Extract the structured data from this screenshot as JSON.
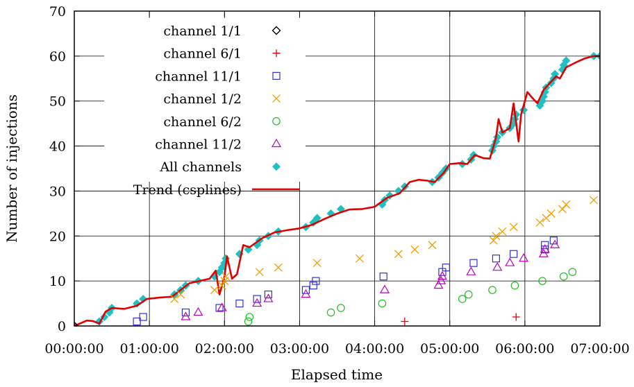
{
  "chart_data": {
    "type": "scatter",
    "title": "",
    "xlabel": "Elapsed time",
    "ylabel": "Number of injections",
    "xlim": [
      "00:00:00",
      "07:00:00"
    ],
    "ylim": [
      0,
      70
    ],
    "x_ticks": [
      "00:00:00",
      "01:00:00",
      "02:00:00",
      "03:00:00",
      "04:00:00",
      "05:00:00",
      "06:00:00",
      "07:00:00"
    ],
    "y_ticks": [
      "0",
      "10",
      "20",
      "30",
      "40",
      "50",
      "60",
      "70"
    ],
    "grid": true,
    "legend_position": "top-left",
    "series": [
      {
        "name": "channel 1/1",
        "marker": "diamond-open",
        "color": "#000000",
        "points": [
          [
            "00:00:00",
            0
          ]
        ]
      },
      {
        "name": "channel 6/1",
        "marker": "plus",
        "color": "#e00000",
        "points": [
          [
            "04:24:00",
            1
          ],
          [
            "05:53:00",
            2
          ]
        ]
      },
      {
        "name": "channel 11/1",
        "marker": "square-open",
        "color": "#3030e0",
        "points": [
          [
            "00:50:00",
            1
          ],
          [
            "00:55:00",
            2
          ],
          [
            "01:29:00",
            3
          ],
          [
            "01:56:00",
            4
          ],
          [
            "02:12:00",
            5
          ],
          [
            "02:26:00",
            6
          ],
          [
            "02:35:00",
            7
          ],
          [
            "03:05:00",
            8
          ],
          [
            "03:11:00",
            9
          ],
          [
            "03:13:00",
            10
          ],
          [
            "04:07:00",
            11
          ],
          [
            "04:54:00",
            12
          ],
          [
            "04:57:00",
            13
          ],
          [
            "05:19:00",
            14
          ],
          [
            "05:37:00",
            15
          ],
          [
            "05:51:00",
            16
          ],
          [
            "06:16:00",
            17
          ],
          [
            "06:16:00",
            18
          ],
          [
            "06:23:00",
            19
          ]
        ]
      },
      {
        "name": "channel 1/2",
        "marker": "cross",
        "color": "#f0a000",
        "points": [
          [
            "01:20:00",
            6
          ],
          [
            "01:25:00",
            7
          ],
          [
            "01:52:00",
            8
          ],
          [
            "01:58:00",
            9
          ],
          [
            "02:00:00",
            10
          ],
          [
            "02:01:00",
            11
          ],
          [
            "02:28:00",
            12
          ],
          [
            "02:43:00",
            13
          ],
          [
            "03:14:00",
            14
          ],
          [
            "03:48:00",
            15
          ],
          [
            "04:19:00",
            16
          ],
          [
            "04:32:00",
            17
          ],
          [
            "04:46:00",
            18
          ],
          [
            "05:35:00",
            19
          ],
          [
            "05:37:00",
            20
          ],
          [
            "05:42:00",
            21
          ],
          [
            "05:51:00",
            22
          ],
          [
            "06:12:00",
            23
          ],
          [
            "06:17:00",
            24
          ],
          [
            "06:21:00",
            25
          ],
          [
            "06:30:00",
            26
          ],
          [
            "06:33:00",
            27
          ],
          [
            "06:55:00",
            28
          ]
        ]
      },
      {
        "name": "channel 6/2",
        "marker": "circle-open",
        "color": "#20c020",
        "points": [
          [
            "02:19:00",
            1
          ],
          [
            "02:20:00",
            2
          ],
          [
            "03:25:00",
            3
          ],
          [
            "03:33:00",
            4
          ],
          [
            "04:06:00",
            5
          ],
          [
            "05:10:00",
            6
          ],
          [
            "05:15:00",
            7
          ],
          [
            "05:34:00",
            8
          ],
          [
            "05:52:00",
            9
          ],
          [
            "06:14:00",
            10
          ],
          [
            "06:31:00",
            11
          ],
          [
            "06:38:00",
            12
          ]
        ]
      },
      {
        "name": "channel 11/2",
        "marker": "triangle-open",
        "color": "#c000c0",
        "points": [
          [
            "01:29:00",
            2
          ],
          [
            "01:39:00",
            3
          ],
          [
            "01:58:00",
            4
          ],
          [
            "02:26:00",
            5
          ],
          [
            "02:35:00",
            6
          ],
          [
            "03:05:00",
            7
          ],
          [
            "04:08:00",
            8
          ],
          [
            "04:51:00",
            9
          ],
          [
            "04:53:00",
            10
          ],
          [
            "04:54:00",
            11
          ],
          [
            "05:17:00",
            12
          ],
          [
            "05:38:00",
            13
          ],
          [
            "05:48:00",
            14
          ],
          [
            "05:59:00",
            15
          ],
          [
            "06:15:00",
            16
          ],
          [
            "06:16:00",
            17
          ],
          [
            "06:24:00",
            18
          ]
        ]
      },
      {
        "name": "All channels",
        "marker": "diamond-filled",
        "color": "#20c0c0",
        "points": [
          [
            "00:00:00",
            0
          ],
          [
            "00:20:00",
            1
          ],
          [
            "00:24:00",
            2
          ],
          [
            "00:28:00",
            3
          ],
          [
            "00:30:00",
            4
          ],
          [
            "00:50:00",
            5
          ],
          [
            "00:55:00",
            6
          ],
          [
            "01:20:00",
            7
          ],
          [
            "01:25:00",
            8
          ],
          [
            "01:29:00",
            9
          ],
          [
            "01:39:00",
            10
          ],
          [
            "01:52:00",
            11
          ],
          [
            "01:56:00",
            12
          ],
          [
            "01:58:00",
            13
          ],
          [
            "02:00:00",
            14
          ],
          [
            "02:01:00",
            15
          ],
          [
            "02:12:00",
            16
          ],
          [
            "02:19:00",
            17
          ],
          [
            "02:26:00",
            18
          ],
          [
            "02:28:00",
            19
          ],
          [
            "02:35:00",
            20
          ],
          [
            "02:43:00",
            21
          ],
          [
            "03:05:00",
            22
          ],
          [
            "03:11:00",
            23
          ],
          [
            "03:14:00",
            24
          ],
          [
            "03:25:00",
            25
          ],
          [
            "03:33:00",
            26
          ],
          [
            "04:06:00",
            27
          ],
          [
            "04:08:00",
            28
          ],
          [
            "04:12:00",
            29
          ],
          [
            "04:19:00",
            30
          ],
          [
            "04:24:00",
            31
          ],
          [
            "04:46:00",
            32
          ],
          [
            "04:51:00",
            33
          ],
          [
            "04:54:00",
            34
          ],
          [
            "04:57:00",
            35
          ],
          [
            "05:10:00",
            36
          ],
          [
            "05:17:00",
            37
          ],
          [
            "05:19:00",
            38
          ],
          [
            "05:34:00",
            39
          ],
          [
            "05:35:00",
            40
          ],
          [
            "05:37:00",
            41
          ],
          [
            "05:38:00",
            42
          ],
          [
            "05:42:00",
            43
          ],
          [
            "05:48:00",
            44
          ],
          [
            "05:51:00",
            45
          ],
          [
            "05:52:00",
            46
          ],
          [
            "05:53:00",
            47
          ],
          [
            "05:59:00",
            48
          ],
          [
            "06:12:00",
            49
          ],
          [
            "06:14:00",
            50
          ],
          [
            "06:15:00",
            51
          ],
          [
            "06:16:00",
            52
          ],
          [
            "06:17:00",
            53
          ],
          [
            "06:21:00",
            54
          ],
          [
            "06:23:00",
            55
          ],
          [
            "06:24:00",
            56
          ],
          [
            "06:30:00",
            57
          ],
          [
            "06:31:00",
            58
          ],
          [
            "06:33:00",
            59
          ],
          [
            "06:55:00",
            60
          ],
          [
            "07:00:00",
            60
          ]
        ]
      },
      {
        "name": "Trend (csplines)",
        "style": "line",
        "color": "#e00000",
        "points": [
          [
            "00:00:00",
            0
          ],
          [
            "00:10:00",
            1.2
          ],
          [
            "00:15:00",
            1.1
          ],
          [
            "00:20:00",
            0.5
          ],
          [
            "00:25:00",
            3.2
          ],
          [
            "00:30:00",
            4
          ],
          [
            "00:40:00",
            3.8
          ],
          [
            "00:50:00",
            4.5
          ],
          [
            "00:58:00",
            6
          ],
          [
            "01:08:00",
            6.3
          ],
          [
            "01:18:00",
            6.5
          ],
          [
            "01:25:00",
            8
          ],
          [
            "01:32:00",
            9.5
          ],
          [
            "01:40:00",
            10
          ],
          [
            "01:48:00",
            10.5
          ],
          [
            "01:53:00",
            12.3
          ],
          [
            "01:56:00",
            7
          ],
          [
            "02:00:00",
            11
          ],
          [
            "02:02:00",
            15.5
          ],
          [
            "02:06:00",
            10.5
          ],
          [
            "02:10:00",
            11.5
          ],
          [
            "02:15:00",
            18
          ],
          [
            "02:20:00",
            17.5
          ],
          [
            "02:30:00",
            19.5
          ],
          [
            "02:40:00",
            20.8
          ],
          [
            "02:50:00",
            21.3
          ],
          [
            "03:00:00",
            21.7
          ],
          [
            "03:10:00",
            22.5
          ],
          [
            "03:20:00",
            23.8
          ],
          [
            "03:30:00",
            25
          ],
          [
            "03:40:00",
            25.9
          ],
          [
            "03:50:00",
            26
          ],
          [
            "04:00:00",
            26.5
          ],
          [
            "04:10:00",
            28.5
          ],
          [
            "04:20:00",
            29.5
          ],
          [
            "04:28:00",
            32
          ],
          [
            "04:35:00",
            32.5
          ],
          [
            "04:42:00",
            32.3
          ],
          [
            "04:48:00",
            32
          ],
          [
            "04:55:00",
            34
          ],
          [
            "05:00:00",
            36
          ],
          [
            "05:08:00",
            36.2
          ],
          [
            "05:14:00",
            36
          ],
          [
            "05:20:00",
            38
          ],
          [
            "05:27:00",
            37.3
          ],
          [
            "05:32:00",
            37.2
          ],
          [
            "05:35:00",
            40
          ],
          [
            "05:37:00",
            42
          ],
          [
            "05:39:00",
            46
          ],
          [
            "05:42:00",
            43
          ],
          [
            "05:48:00",
            44
          ],
          [
            "05:51:00",
            49.5
          ],
          [
            "05:55:00",
            41
          ],
          [
            "05:57:00",
            47
          ],
          [
            "06:02:00",
            52
          ],
          [
            "06:05:00",
            51
          ],
          [
            "06:10:00",
            49.5
          ],
          [
            "06:15:00",
            52.5
          ],
          [
            "06:20:00",
            54
          ],
          [
            "06:25:00",
            55.5
          ],
          [
            "06:28:00",
            55
          ],
          [
            "06:33:00",
            57.5
          ],
          [
            "06:40:00",
            58.5
          ],
          [
            "06:48:00",
            59.5
          ],
          [
            "06:55:00",
            60
          ],
          [
            "07:00:00",
            60
          ]
        ]
      }
    ]
  }
}
